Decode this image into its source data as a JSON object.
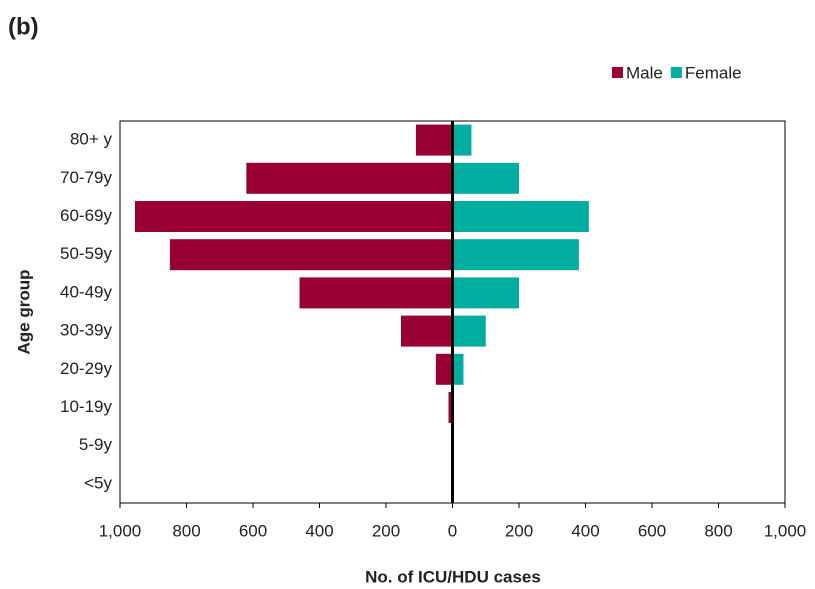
{
  "panel_label": "(b)",
  "chart_data": {
    "type": "pyramid",
    "x_label": "No. of ICU/HDU cases",
    "y_label": "Age group",
    "categories": [
      "80+ y",
      "70-79y",
      "60-69y",
      "50-59y",
      "40-49y",
      "30-39y",
      "20-29y",
      "10-19y",
      "5-9y",
      "<5y"
    ],
    "series": [
      {
        "name": "Male",
        "color": "#990033",
        "values": [
          -110,
          -620,
          -955,
          -850,
          -460,
          -155,
          -50,
          -12,
          0,
          0
        ]
      },
      {
        "name": "Female",
        "color": "#00ada0",
        "values": [
          57,
          200,
          410,
          380,
          200,
          100,
          33,
          0,
          0,
          0
        ]
      }
    ],
    "xlim": [
      -1000,
      1000
    ],
    "xticks": [
      {
        "value": -1000,
        "label": "1,000"
      },
      {
        "value": -800,
        "label": "800"
      },
      {
        "value": -600,
        "label": "600"
      },
      {
        "value": -400,
        "label": "400"
      },
      {
        "value": -200,
        "label": "200"
      },
      0,
      200,
      400,
      600,
      800,
      {
        "value": 1000,
        "label": "1,000"
      }
    ],
    "legend": "top-right"
  }
}
